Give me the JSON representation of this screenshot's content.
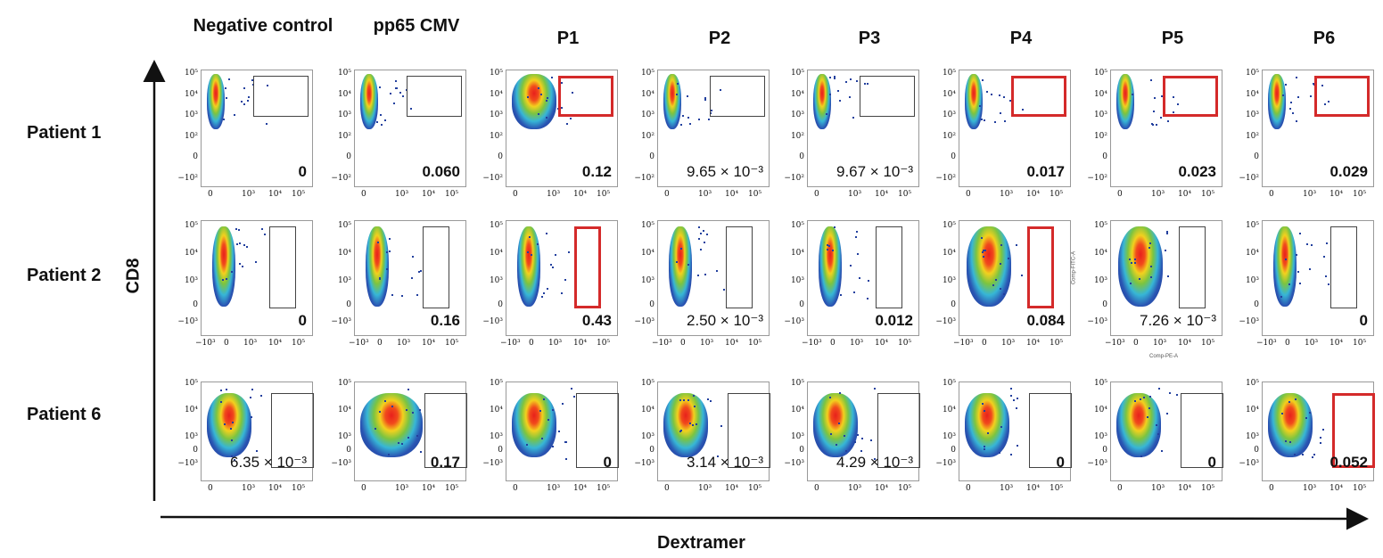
{
  "chart_data": {
    "type": "scatter",
    "title": "",
    "xlabel": "Dextramer",
    "ylabel": "CD8",
    "columns": [
      "Negative control",
      "pp65 CMV",
      "P1",
      "P2",
      "P3",
      "P4",
      "P5",
      "P6"
    ],
    "rows": [
      {
        "label": "Patient 1",
        "yticks": [
          "10⁵",
          "10⁴",
          "10³",
          "10²",
          "0",
          "−10²"
        ],
        "xticks": [
          "0",
          "10³",
          "10⁴",
          "10⁵"
        ],
        "values": [
          "0",
          "0.060",
          "0.12",
          "9.65 × 10⁻³",
          "9.67 × 10⁻³",
          "0.017",
          "0.023",
          "0.029"
        ],
        "highlighted_gates": [
          false,
          false,
          true,
          false,
          false,
          true,
          true,
          true
        ]
      },
      {
        "label": "Patient 2",
        "yticks": [
          "10⁵",
          "10⁴",
          "10³",
          "0",
          "−10³"
        ],
        "xticks": [
          "−10³",
          "0",
          "10³",
          "10⁴",
          "10⁵"
        ],
        "values": [
          "0",
          "0.16",
          "0.43",
          "2.50 × 10⁻³",
          "0.012",
          "0.084",
          "7.26 × 10⁻³",
          "0"
        ],
        "highlighted_gates": [
          false,
          false,
          true,
          false,
          false,
          true,
          false,
          false
        ]
      },
      {
        "label": "Patient 6",
        "yticks": [
          "10⁵",
          "10⁴",
          "10³",
          "0",
          "−10³"
        ],
        "xticks": [
          "0",
          "10³",
          "10⁴",
          "10⁵"
        ],
        "values": [
          "6.35 × 10⁻³",
          "0.17",
          "0",
          "3.14 × 10⁻³",
          "4.29 × 10⁻³",
          "0",
          "0",
          "0.052"
        ],
        "highlighted_gates": [
          false,
          false,
          false,
          false,
          false,
          false,
          false,
          true
        ]
      }
    ],
    "inset_axis_labels": {
      "y": "Comp-FITC-A",
      "x": "Comp-PE-A"
    },
    "colors": {
      "gate": "#444444",
      "highlight_gate": "#d42a2a",
      "low_density": "#2a55b3",
      "high_density": "#e8201c"
    }
  }
}
